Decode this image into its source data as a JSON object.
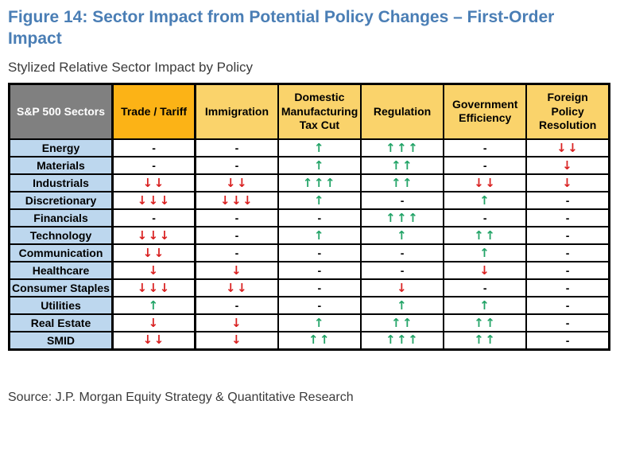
{
  "figure": {
    "title": "Figure 14: Sector Impact from Potential Policy Changes – First-Order Impact",
    "subtitle": "Stylized Relative Sector Impact by Policy",
    "source": "Source: J.P. Morgan Equity Strategy & Quantitative Research"
  },
  "colors": {
    "title_blue": "#4A7EB5",
    "header_gray_bg": "#808080",
    "policy_col_bg": "#FAD36B",
    "highlight_col_bg": "#FCB316",
    "sector_col_bg": "#BDD7EE",
    "up_arrow_green": "#21A366",
    "down_arrow_red": "#D92121",
    "border_black": "#000000"
  },
  "chart_data": {
    "type": "table",
    "title": "Stylized Relative Sector Impact by Policy",
    "columns": [
      "S&P 500 Sectors",
      "Trade / Tariff",
      "Immigration",
      "Domestic Manufacturing Tax Cut",
      "Regulation",
      "Government Efficiency",
      "Foreign Policy Resolution"
    ],
    "highlighted_column": "Trade / Tariff",
    "value_legend": {
      "up_arrows": "relative positive impact, count = magnitude",
      "down_arrows": "relative negative impact, count = magnitude",
      "dash": "neutral / no first-order impact"
    },
    "rows": [
      {
        "sector": "Energy",
        "impacts": [
          "-",
          "-",
          "↑",
          "↑↑↑",
          "-",
          "↓↓"
        ]
      },
      {
        "sector": "Materials",
        "impacts": [
          "-",
          "-",
          "↑",
          "↑↑",
          "-",
          "↓"
        ]
      },
      {
        "sector": "Industrials",
        "impacts": [
          "↓↓",
          "↓↓",
          "↑↑↑",
          "↑↑",
          "↓↓",
          "↓"
        ]
      },
      {
        "sector": "Discretionary",
        "impacts": [
          "↓↓↓",
          "↓↓↓",
          "↑",
          "-",
          "↑",
          "-"
        ]
      },
      {
        "sector": "Financials",
        "impacts": [
          "-",
          "-",
          "-",
          "↑↑↑",
          "-",
          "-"
        ]
      },
      {
        "sector": "Technology",
        "impacts": [
          "↓↓↓",
          "-",
          "↑",
          "↑",
          "↑↑",
          "-"
        ]
      },
      {
        "sector": "Communication",
        "impacts": [
          "↓↓",
          "-",
          "-",
          "-",
          "↑",
          "-"
        ]
      },
      {
        "sector": "Healthcare",
        "impacts": [
          "↓",
          "↓",
          "-",
          "-",
          "↓",
          "-"
        ]
      },
      {
        "sector": "Consumer Staples",
        "impacts": [
          "↓↓↓",
          "↓↓",
          "-",
          "↓",
          "-",
          "-"
        ]
      },
      {
        "sector": "Utilities",
        "impacts": [
          "↑",
          "-",
          "-",
          "↑",
          "↑",
          "-"
        ]
      },
      {
        "sector": "Real Estate",
        "impacts": [
          "↓",
          "↓",
          "↑",
          "↑↑",
          "↑↑",
          "-"
        ]
      },
      {
        "sector": "SMID",
        "impacts": [
          "↓↓",
          "↓",
          "↑↑",
          "↑↑↑",
          "↑↑",
          "-"
        ]
      }
    ]
  }
}
